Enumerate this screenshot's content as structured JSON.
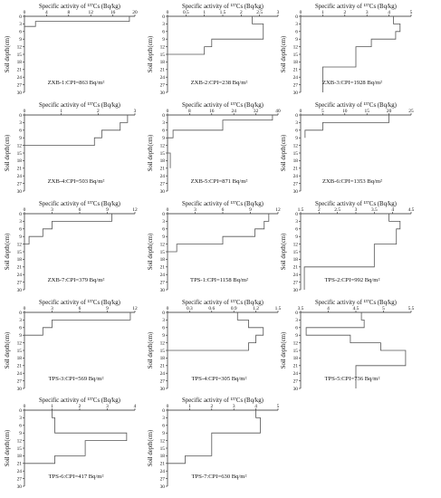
{
  "figure": {
    "xlabel": "Specific activity of ¹³⁷Cs (Bq/kg)",
    "ylabel": "Soil depth(cm)"
  },
  "chart_data": [
    {
      "id": "zxb1",
      "type": "line",
      "xlabel": "Specific activity of ¹³⁷Cs (Bq/kg)",
      "ylabel": "Soil depth(cm)",
      "xlim": [
        0,
        20
      ],
      "xticks": [
        0,
        4,
        8,
        12,
        16,
        20
      ],
      "ylim": [
        0,
        30
      ],
      "yticks": [
        0,
        3,
        6,
        9,
        12,
        15,
        18,
        21,
        24,
        27,
        30
      ],
      "annotation": "ZXB-1:CPI=863 Bq/m²",
      "x": [
        19,
        19,
        2,
        2,
        0
      ],
      "depth": [
        0,
        2,
        2,
        4,
        4
      ]
    },
    {
      "id": "zxb2",
      "type": "line",
      "xlabel": "Specific activity of ¹³⁷Cs (Bq/kg)",
      "ylabel": "Soil depth(cm)",
      "xlim": [
        0,
        3.0
      ],
      "xticks": [
        0,
        0.5,
        1.0,
        1.5,
        2.0,
        2.5,
        3.0
      ],
      "ylim": [
        0,
        30
      ],
      "yticks": [
        0,
        3,
        6,
        9,
        12,
        15,
        18,
        21,
        24,
        27,
        30
      ],
      "annotation": "ZXB-2:CPI=238 Bq/m²",
      "x": [
        2.3,
        2.3,
        2.6,
        2.6,
        1.2,
        1.2,
        1.0,
        1.0,
        0
      ],
      "depth": [
        0,
        3,
        3,
        9,
        9,
        12,
        12,
        15,
        15
      ]
    },
    {
      "id": "zxb3",
      "type": "line",
      "xlabel": "Specific activity of ¹³⁷Cs (Bq/kg)",
      "ylabel": "Soil depth(cm)",
      "xlim": [
        0,
        5
      ],
      "xticks": [
        0,
        1,
        2,
        3,
        4,
        5
      ],
      "ylim": [
        0,
        30
      ],
      "yticks": [
        0,
        3,
        6,
        9,
        12,
        15,
        18,
        21,
        24,
        27,
        30
      ],
      "annotation": "ZXB-3:CPI=1928 Bq/m²",
      "x": [
        4.2,
        4.2,
        4.5,
        4.5,
        4.3,
        4.3,
        3.2,
        3.2,
        2.5,
        2.5,
        1.0,
        1.0
      ],
      "depth": [
        0,
        3,
        3,
        6,
        6,
        9,
        9,
        12,
        12,
        20,
        20,
        30
      ]
    },
    {
      "id": "zxb4",
      "type": "line",
      "xlabel": "Specific activity of ¹³⁷Cs (Bq/kg)",
      "ylabel": "Soil depth(cm)",
      "xlim": [
        0,
        3
      ],
      "xticks": [
        0,
        1,
        2,
        3
      ],
      "ylim": [
        0,
        30
      ],
      "yticks": [
        0,
        3,
        6,
        9,
        12,
        15,
        18,
        21,
        24,
        27,
        30
      ],
      "annotation": "ZXB-4:CPI=503 Bq/m²",
      "x": [
        2.8,
        2.8,
        2.6,
        2.6,
        2.1,
        2.1,
        1.9,
        1.9,
        0
      ],
      "depth": [
        0,
        3,
        3,
        6,
        6,
        9,
        9,
        12,
        12
      ]
    },
    {
      "id": "zxb5",
      "type": "line",
      "xlabel": "Specific activity of ¹³⁷Cs (Bq/kg)",
      "ylabel": "Soil depth(cm)",
      "xlim": [
        0,
        40
      ],
      "xticks": [
        0,
        8,
        16,
        24,
        32,
        40
      ],
      "ylim": [
        0,
        30
      ],
      "yticks": [
        0,
        3,
        6,
        9,
        12,
        15,
        18,
        21,
        24,
        27,
        30
      ],
      "annotation": "ZXB-5:CPI=871 Bq/m²",
      "x": [
        38,
        38,
        20,
        20,
        2,
        2,
        0,
        0,
        1,
        1
      ],
      "depth": [
        0,
        2,
        2,
        6,
        6,
        9,
        9,
        15,
        15,
        21
      ]
    },
    {
      "id": "zxb6",
      "type": "line",
      "xlabel": "Specific activity of ¹³⁷Cs (Bq/kg)",
      "ylabel": "Soil depth(cm)",
      "xlim": [
        0,
        25
      ],
      "xticks": [
        0,
        5,
        10,
        15,
        20,
        25
      ],
      "ylim": [
        0,
        30
      ],
      "yticks": [
        0,
        3,
        6,
        9,
        12,
        15,
        18,
        21,
        24,
        27,
        30
      ],
      "annotation": "ZXB-6:CPI=1353 Bq/m²",
      "x": [
        20,
        20,
        5,
        5,
        1,
        1
      ],
      "depth": [
        0,
        3,
        3,
        6,
        6,
        9
      ]
    },
    {
      "id": "zxb7",
      "type": "line",
      "xlabel": "Specific activity of ¹³⁷Cs (Bq/kg)",
      "ylabel": "Soil depth(cm)",
      "xlim": [
        0,
        12
      ],
      "xticks": [
        0,
        3,
        6,
        9,
        12
      ],
      "ylim": [
        0,
        30
      ],
      "yticks": [
        0,
        3,
        6,
        9,
        12,
        15,
        18,
        21,
        24,
        27,
        30
      ],
      "annotation": "ZXB-7:CPI=379 Bq/m²",
      "x": [
        9.5,
        9.5,
        3,
        3,
        2,
        2,
        0.5,
        0.5,
        0
      ],
      "depth": [
        0,
        3,
        3,
        6,
        6,
        9,
        9,
        12,
        12
      ]
    },
    {
      "id": "tps1",
      "type": "line",
      "xlabel": "Specific activity of ¹³⁷Cs (Bq/kg)",
      "ylabel": "Soil depth(cm)",
      "xlim": [
        0,
        12
      ],
      "xticks": [
        0,
        3,
        6,
        9,
        12
      ],
      "ylim": [
        0,
        30
      ],
      "yticks": [
        0,
        3,
        6,
        9,
        12,
        15,
        18,
        21,
        24,
        27,
        30
      ],
      "annotation": "TPS-1:CPI=1158 Bq/m²",
      "x": [
        11,
        11,
        10.5,
        10.5,
        9.5,
        9.5,
        6,
        6,
        1,
        1,
        0
      ],
      "depth": [
        0,
        3,
        3,
        6,
        6,
        9,
        9,
        12,
        12,
        15,
        15
      ]
    },
    {
      "id": "tps2",
      "type": "line",
      "xlabel": "Specific activity of ¹³⁷Cs (Bq/kg)",
      "ylabel": "Soil depth(cm)",
      "xlim": [
        1.5,
        4.5
      ],
      "xticks": [
        1.5,
        2.0,
        2.5,
        3.0,
        3.5,
        4.0,
        4.5
      ],
      "ylim": [
        0,
        30
      ],
      "yticks": [
        0,
        3,
        6,
        9,
        12,
        15,
        18,
        21,
        24,
        27,
        30
      ],
      "annotation": "TPS-2:CPI=992 Bq/m²",
      "x": [
        3.9,
        3.9,
        4.2,
        4.2,
        4.1,
        4.1,
        3.5,
        3.5,
        1.6,
        1.6
      ],
      "depth": [
        0,
        3,
        3,
        6,
        6,
        12,
        12,
        21,
        21,
        30
      ]
    },
    {
      "id": "tps3",
      "type": "line",
      "xlabel": "Specific activity of ¹³⁷Cs (Bq/kg)",
      "ylabel": "Soil depth(cm)",
      "xlim": [
        0,
        12
      ],
      "xticks": [
        0,
        3,
        6,
        9,
        12
      ],
      "ylim": [
        0,
        30
      ],
      "yticks": [
        0,
        3,
        6,
        9,
        12,
        15,
        18,
        21,
        24,
        27,
        30
      ],
      "annotation": "TPS-3:CPI=569 Bq/m²",
      "x": [
        11.5,
        11.5,
        3,
        3,
        2,
        2,
        0
      ],
      "depth": [
        0,
        3,
        3,
        6,
        6,
        9,
        9
      ]
    },
    {
      "id": "tps4",
      "type": "line",
      "xlabel": "Specific activity of ¹³⁷Cs (Bq/kg)",
      "ylabel": "Soil depth(cm)",
      "xlim": [
        0,
        1.5
      ],
      "xticks": [
        0,
        0.3,
        0.6,
        0.9,
        1.2,
        1.5
      ],
      "ylim": [
        0,
        30
      ],
      "yticks": [
        0,
        3,
        6,
        9,
        12,
        15,
        18,
        21,
        24,
        27,
        30
      ],
      "annotation": "TPS-4:CPI=305 Bq/m²",
      "x": [
        0.95,
        0.95,
        1.1,
        1.1,
        1.3,
        1.3,
        1.2,
        1.2,
        1.1,
        1.1,
        0
      ],
      "depth": [
        0,
        3,
        3,
        6,
        6,
        9,
        9,
        12,
        12,
        15,
        15
      ]
    },
    {
      "id": "tps5",
      "type": "line",
      "xlabel": "Specific activity of ¹³⁷Cs (Bq/kg)",
      "ylabel": "Soil depth(cm)",
      "xlim": [
        3.5,
        5.5
      ],
      "xticks": [
        3.5,
        4.0,
        4.5,
        5.0,
        5.5
      ],
      "ylim": [
        0,
        30
      ],
      "yticks": [
        0,
        3,
        6,
        9,
        12,
        15,
        18,
        21,
        24,
        27,
        30
      ],
      "annotation": "TPS-5:CPI=736 Bq/m²",
      "x": [
        4.6,
        4.6,
        4.65,
        4.65,
        3.6,
        3.6,
        4.4,
        4.4,
        4.95,
        4.95,
        5.4,
        5.4,
        4.5,
        4.5
      ],
      "depth": [
        0,
        3,
        3,
        6,
        6,
        9,
        9,
        12,
        12,
        15,
        15,
        21,
        21,
        30
      ]
    },
    {
      "id": "tps6",
      "type": "line",
      "xlabel": "Specific activity of ¹³⁷Cs (Bq/kg)",
      "ylabel": "Soil depth(cm)",
      "xlim": [
        0,
        4
      ],
      "xticks": [
        0,
        1,
        2,
        3,
        4
      ],
      "ylim": [
        0,
        30
      ],
      "yticks": [
        0,
        3,
        6,
        9,
        12,
        15,
        18,
        21,
        24,
        27,
        30
      ],
      "annotation": "TPS-6:CPI=417 Bq/m²",
      "x": [
        1,
        1,
        1.1,
        1.1,
        3.7,
        3.7,
        2.2,
        2.2,
        1.1,
        1.1,
        0
      ],
      "depth": [
        0,
        3,
        3,
        9,
        9,
        12,
        12,
        18,
        18,
        21,
        21
      ]
    },
    {
      "id": "tps7",
      "type": "line",
      "xlabel": "Specific activity of ¹³⁷Cs (Bq/kg)",
      "ylabel": "Soil depth(cm)",
      "xlim": [
        0,
        5
      ],
      "xticks": [
        0,
        1,
        2,
        3,
        4,
        5
      ],
      "ylim": [
        0,
        30
      ],
      "yticks": [
        0,
        3,
        6,
        9,
        12,
        15,
        18,
        21,
        24,
        27,
        30
      ],
      "annotation": "TPS-7:CPI=630 Bq/m²",
      "x": [
        4,
        4,
        4.2,
        4.2,
        2,
        2,
        0.8,
        0.8,
        0
      ],
      "depth": [
        0,
        3,
        3,
        9,
        9,
        18,
        18,
        21,
        21
      ]
    }
  ]
}
